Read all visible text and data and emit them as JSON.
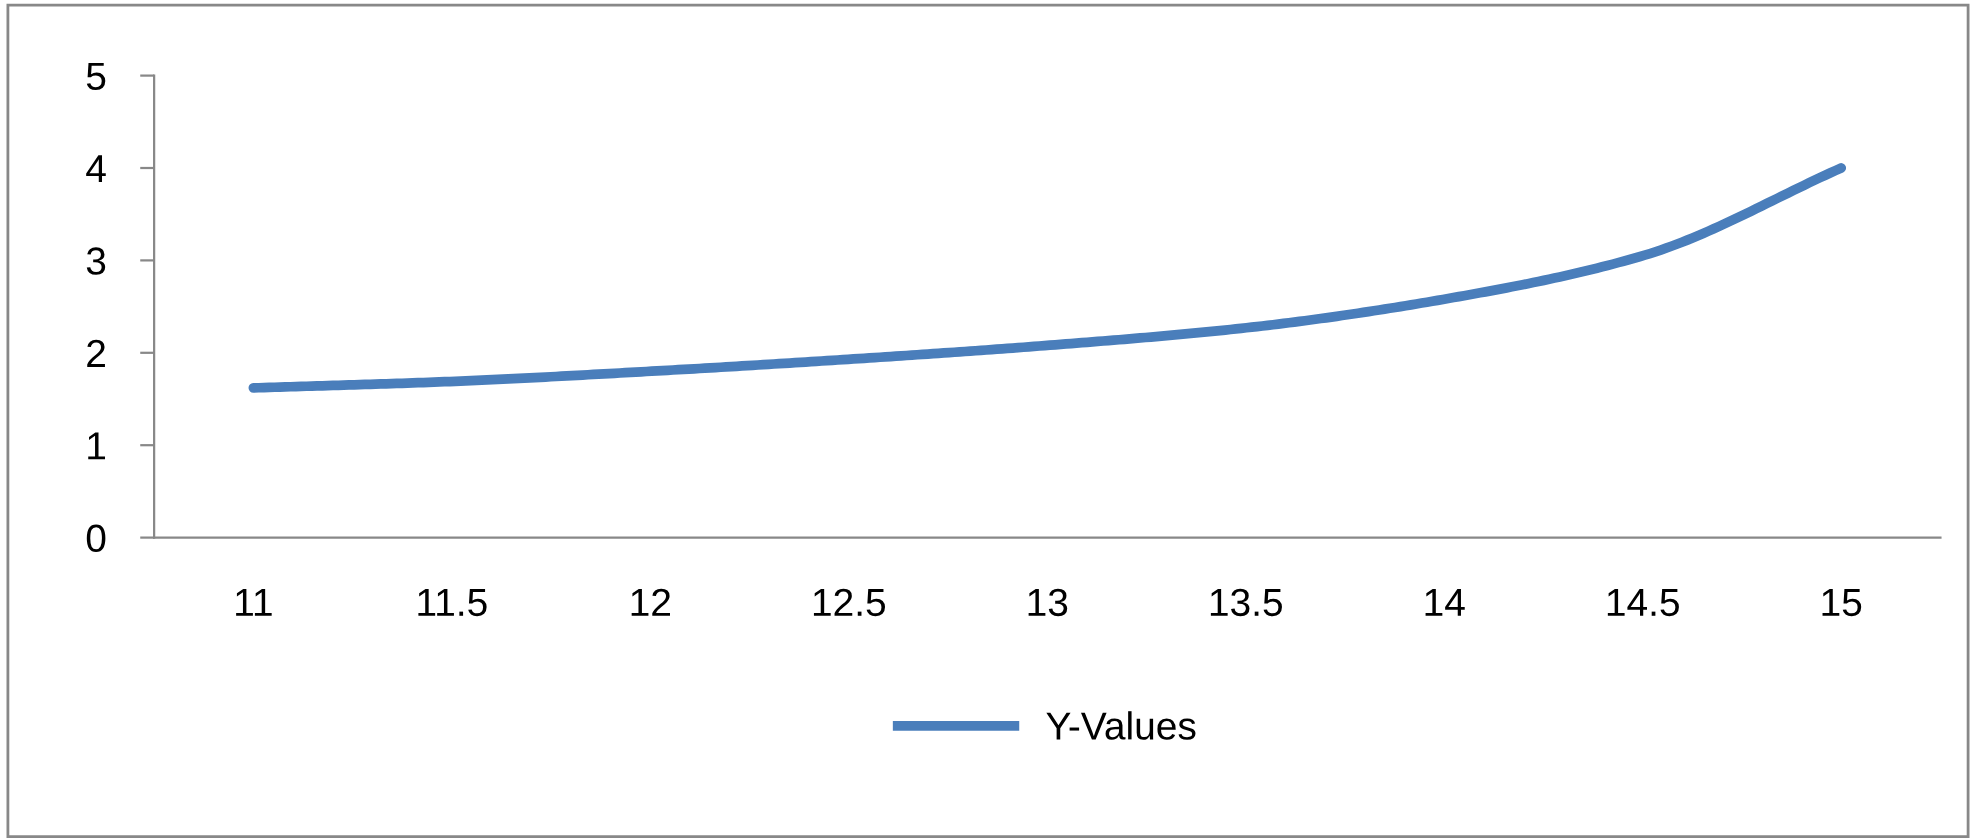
{
  "chart_data": {
    "type": "line",
    "categories": [
      "11",
      "11.5",
      "12",
      "12.5",
      "13",
      "13.5",
      "14",
      "14.5",
      "15"
    ],
    "series": [
      {
        "name": "Y-Values",
        "color": "#4a7ebb",
        "values": [
          1.62,
          1.69,
          1.8,
          1.93,
          2.08,
          2.27,
          2.58,
          3.05,
          4.0
        ]
      }
    ],
    "ylim": [
      0,
      5
    ],
    "yticks": [
      0,
      1,
      2,
      3,
      4,
      5
    ],
    "grid": false,
    "legend": "bottom",
    "marker": "none",
    "line_style": "solid"
  }
}
